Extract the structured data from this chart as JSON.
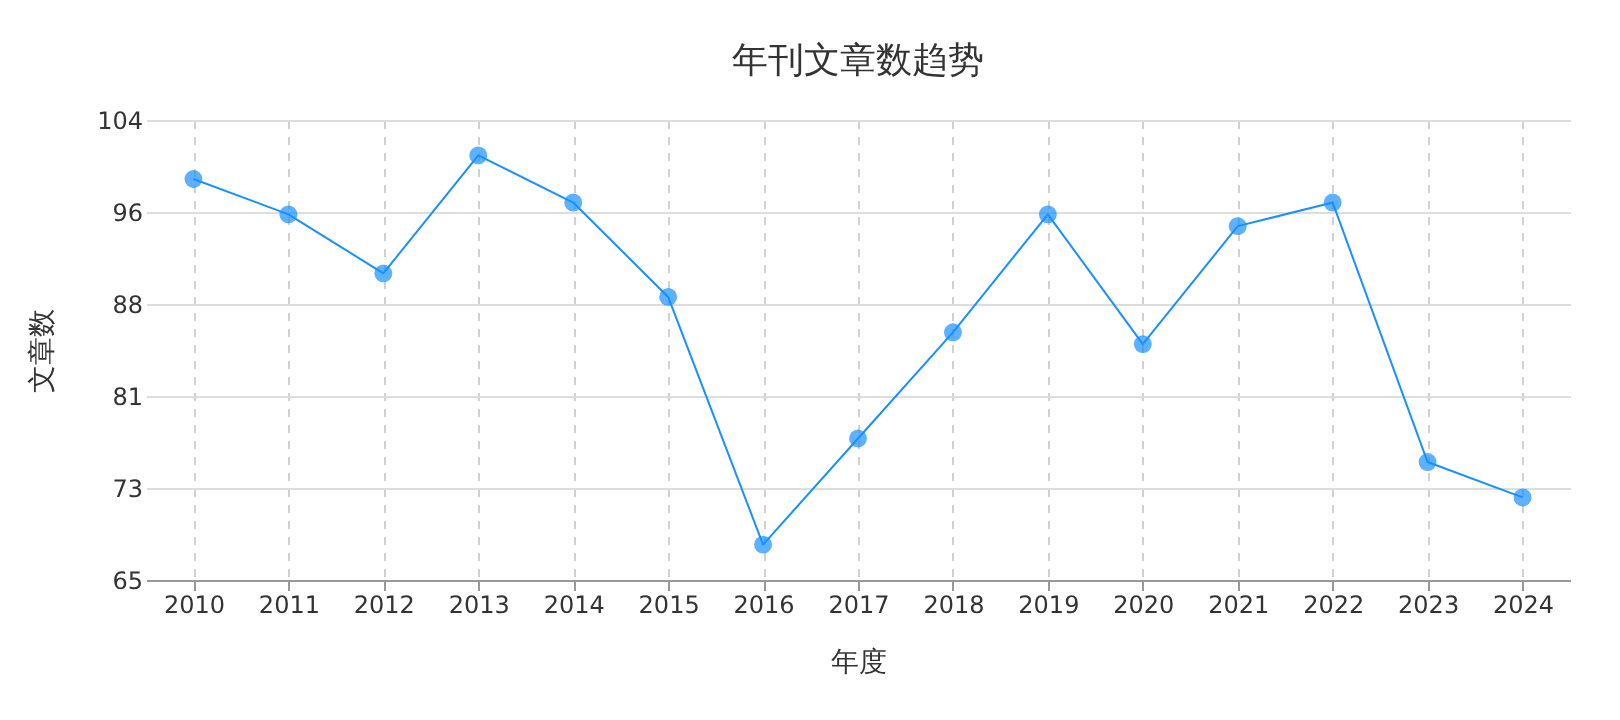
{
  "chart_data": {
    "type": "line",
    "title": "年刊文章数趋势",
    "xlabel": "年度",
    "ylabel": "文章数",
    "categories": [
      "2010",
      "2011",
      "2012",
      "2013",
      "2014",
      "2015",
      "2016",
      "2017",
      "2018",
      "2019",
      "2020",
      "2021",
      "2022",
      "2023",
      "2024"
    ],
    "series": [
      {
        "color": "#1890ff",
        "values": [
          99,
          96,
          91,
          101,
          97,
          89,
          68,
          77,
          86,
          96,
          85,
          95,
          97,
          75,
          72
        ]
      }
    ],
    "ylim": [
      65,
      104
    ],
    "yticks": [
      65,
      {
        "value": 72.8,
        "label": "73"
      },
      {
        "value": 80.6,
        "label": "81"
      },
      {
        "value": 88.4,
        "label": "88"
      },
      {
        "value": 96.2,
        "label": "96"
      },
      104
    ],
    "grid": true,
    "marker": "circle",
    "line_style": "solid"
  }
}
